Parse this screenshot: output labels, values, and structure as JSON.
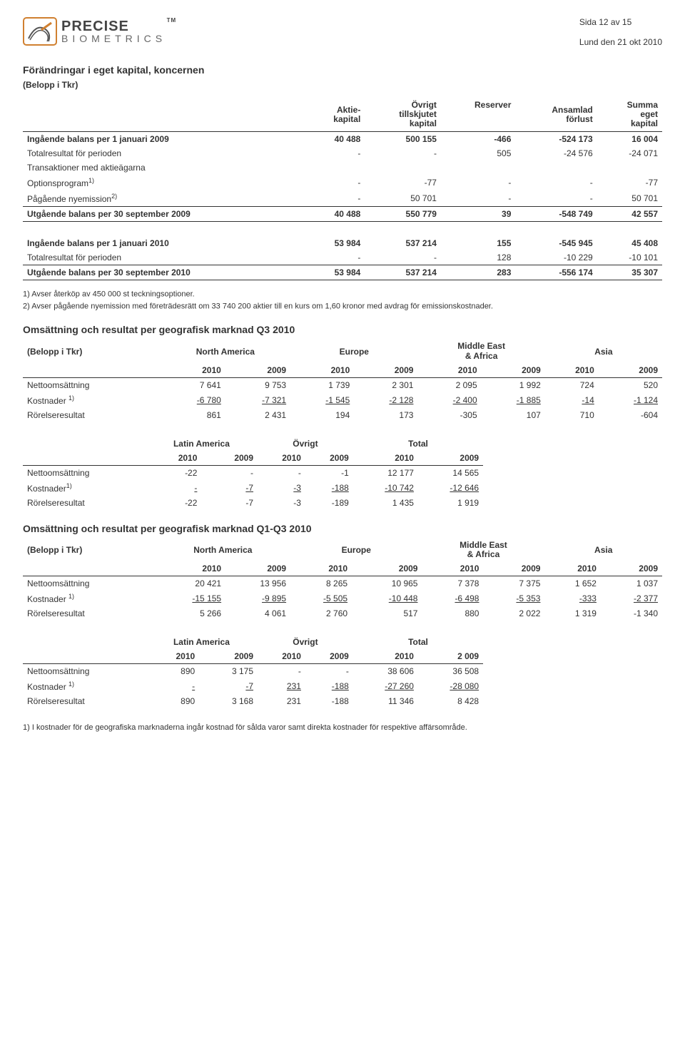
{
  "header": {
    "page_label": "Sida 12 av 15",
    "date_label": "Lund den 21 okt 2010",
    "logo_brand": "PRECISE",
    "logo_tm": "TM",
    "logo_sub": "BIOMETRICS"
  },
  "section1": {
    "title": "Förändringar i eget kapital, koncernen",
    "subtitle": "(Belopp i Tkr)",
    "col_headers": {
      "c1": "",
      "c2a": "Aktie-",
      "c2b": "kapital",
      "c3a": "Övrigt",
      "c3b": "tillskjutet",
      "c3c": "kapital",
      "c4": "Reserver",
      "c5a": "Ansamlad",
      "c5b": "förlust",
      "c6a": "Summa",
      "c6b": "eget",
      "c6c": "kapital"
    },
    "rows": [
      {
        "label": "Ingående balans per 1 januari 2009",
        "v": [
          "40 488",
          "500 155",
          "-466",
          "-524 173",
          "16 004"
        ],
        "bold": true
      },
      {
        "label": "Totalresultat för perioden",
        "v": [
          "-",
          "-",
          "505",
          "-24 576",
          "-24 071"
        ],
        "bold": false
      },
      {
        "label": "Transaktioner med aktieägarna",
        "v": [
          "",
          "",
          "",
          "",
          ""
        ],
        "bold": false
      },
      {
        "label": "Optionsprogram",
        "sup": "1)",
        "v": [
          "-",
          "-77",
          "-",
          "-",
          "-77"
        ],
        "bold": false
      },
      {
        "label": "Pågående nyemission",
        "sup": "2)",
        "v": [
          "-",
          "50 701",
          "-",
          "-",
          "50 701"
        ],
        "bold": false
      },
      {
        "label": "Utgående balans per 30 september 2009",
        "v": [
          "40 488",
          "550 779",
          "39",
          "-548 749",
          "42 557"
        ],
        "bold": true,
        "under": true
      }
    ],
    "rows2": [
      {
        "label": "Ingående balans per 1 januari 2010",
        "v": [
          "53 984",
          "537 214",
          "155",
          "-545 945",
          "45 408"
        ],
        "bold": true
      },
      {
        "label": "Totalresultat för perioden",
        "v": [
          "-",
          "-",
          "128",
          "-10 229",
          "-10 101"
        ],
        "bold": false
      },
      {
        "label": "Utgående balans per 30 september 2010",
        "v": [
          "53 984",
          "537 214",
          "283",
          "-556 174",
          "35 307"
        ],
        "bold": true,
        "under": true
      }
    ],
    "footnote1": "1) Avser återköp av 450 000 st teckningsoptioner.",
    "footnote2": "2) Avser pågående nyemission med företrädesrätt om 33 740 200 aktier till en kurs om 1,60 kronor med avdrag för emissionskostnader."
  },
  "section2": {
    "title": "Omsättning och resultat per geografisk marknad Q3 2010",
    "belopp": "(Belopp i Tkr)",
    "regions1": [
      "North America",
      "Europe",
      "Middle East & Africa",
      "Asia"
    ],
    "years": [
      "2010",
      "2009",
      "2010",
      "2009",
      "2010",
      "2009",
      "2010",
      "2009"
    ],
    "block1_rows": [
      {
        "label": "Nettoomsättning",
        "v": [
          "7 641",
          "9 753",
          "1 739",
          "2 301",
          "2 095",
          "1 992",
          "724",
          "520"
        ]
      },
      {
        "label": "Kostnader ",
        "sup": "1)",
        "v": [
          "-6 780",
          "-7 321",
          "-1 545",
          "-2 128",
          "-2 400",
          "-1 885",
          "-14",
          "-1 124"
        ],
        "underline": true
      },
      {
        "label": "Rörelseresultat",
        "v": [
          "861",
          "2 431",
          "194",
          "173",
          "-305",
          "107",
          "710",
          "-604"
        ]
      }
    ],
    "regions2": [
      "Latin America",
      "Övrigt",
      "Total"
    ],
    "years2": [
      "2010",
      "2009",
      "2010",
      "2009",
      "2010",
      "2009"
    ],
    "block2_rows": [
      {
        "label": "Nettoomsättning",
        "v": [
          "-22",
          "-",
          "-",
          "-1",
          "12 177",
          "14 565"
        ]
      },
      {
        "label": "Kostnader",
        "sup": "1)",
        "v": [
          "-",
          "-7",
          "-3",
          "-188",
          "-10 742",
          "-12 646"
        ],
        "underline": true
      },
      {
        "label": "Rörelseresultat",
        "v": [
          "-22",
          "-7",
          "-3",
          "-189",
          "1 435",
          "1 919"
        ]
      }
    ]
  },
  "section3": {
    "title": "Omsättning och resultat per geografisk marknad Q1-Q3 2010",
    "belopp": "(Belopp i Tkr)",
    "regions1": [
      "North America",
      "Europe",
      "Middle East & Africa",
      "Asia"
    ],
    "years": [
      "2010",
      "2009",
      "2010",
      "2009",
      "2010",
      "2009",
      "2010",
      "2009"
    ],
    "block1_rows": [
      {
        "label": "Nettoomsättning",
        "v": [
          "20 421",
          "13 956",
          "8 265",
          "10 965",
          "7 378",
          "7 375",
          "1 652",
          "1 037"
        ]
      },
      {
        "label": "Kostnader ",
        "sup": "1)",
        "v": [
          "-15 155",
          "-9 895",
          "-5 505",
          "-10 448",
          "-6 498",
          "-5 353",
          "-333",
          "-2 377"
        ],
        "underline": true
      },
      {
        "label": "Rörelseresultat",
        "v": [
          "5 266",
          "4 061",
          "2 760",
          "517",
          "880",
          "2 022",
          "1 319",
          "-1 340"
        ]
      }
    ],
    "regions2": [
      "Latin America",
      "Övrigt",
      "Total"
    ],
    "years2": [
      "2010",
      "2009",
      "2010",
      "2009",
      "2010",
      "2 009"
    ],
    "block2_rows": [
      {
        "label": "Nettoomsättning",
        "v": [
          "890",
          "3 175",
          "-",
          "-",
          "38 606",
          "36 508"
        ]
      },
      {
        "label": "Kostnader ",
        "sup": "1)",
        "v": [
          "-",
          "-7",
          "231",
          "-188",
          "-27 260",
          "-28 080"
        ],
        "underline": true
      },
      {
        "label": "Rörelseresultat",
        "v": [
          "890",
          "3 168",
          "231",
          "-188",
          "11 346",
          "8 428"
        ]
      }
    ],
    "footnote": "1) I kostnader för de geografiska marknaderna ingår kostnad för sålda varor samt direkta kostnader för respektive affärsområde."
  }
}
